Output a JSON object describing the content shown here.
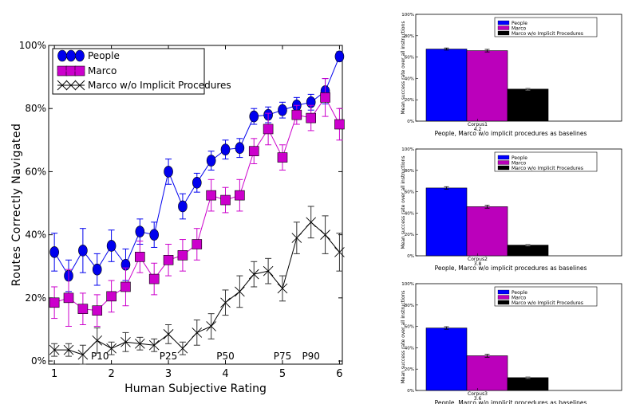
{
  "chart_data": [
    {
      "type": "line",
      "xlabel": "Human Subjective Rating",
      "ylabel": "Routes Correctly Navigated",
      "xlim": [
        0.9,
        6.05
      ],
      "ylim": [
        -0.01,
        1.0
      ],
      "xticks": [
        "1",
        "2",
        "3",
        "4",
        "5",
        "6"
      ],
      "yticks": [
        "0%",
        "20%",
        "40%",
        "60%",
        "80%",
        "100%"
      ],
      "legend_position": "top-left",
      "annotations": [
        {
          "label": "P10",
          "x": 1.8
        },
        {
          "label": "P25",
          "x": 3.0
        },
        {
          "label": "P50",
          "x": 4.0
        },
        {
          "label": "P75",
          "x": 5.0
        },
        {
          "label": "P90",
          "x": 5.5
        }
      ],
      "x": [
        1.0,
        1.25,
        1.5,
        1.75,
        2.0,
        2.25,
        2.5,
        2.75,
        3.0,
        3.25,
        3.5,
        3.75,
        4.0,
        4.25,
        4.5,
        4.75,
        5.0,
        5.25,
        5.5,
        5.75,
        6.0
      ],
      "series": [
        {
          "name": "People",
          "color": "#0000ee",
          "values": [
            0.345,
            0.27,
            0.35,
            0.29,
            0.365,
            0.305,
            0.41,
            0.4,
            0.6,
            0.49,
            0.565,
            0.635,
            0.67,
            0.675,
            0.775,
            0.78,
            0.795,
            0.81,
            0.82,
            0.855,
            0.965
          ],
          "errors": [
            0.06,
            0.05,
            0.07,
            0.05,
            0.05,
            0.05,
            0.04,
            0.04,
            0.04,
            0.04,
            0.03,
            0.03,
            0.03,
            0.03,
            0.025,
            0.025,
            0.025,
            0.025,
            0.025,
            0.04,
            0.015
          ]
        },
        {
          "name": "Marco",
          "color": "#cc00cc",
          "values": [
            0.185,
            0.2,
            0.165,
            0.16,
            0.205,
            0.235,
            0.33,
            0.26,
            0.32,
            0.335,
            0.37,
            0.525,
            0.51,
            0.525,
            0.665,
            0.735,
            0.645,
            0.78,
            0.77,
            0.835,
            0.75
          ],
          "errors": [
            0.05,
            0.09,
            0.05,
            0.05,
            0.05,
            0.06,
            0.05,
            0.05,
            0.05,
            0.05,
            0.05,
            0.05,
            0.04,
            0.05,
            0.04,
            0.05,
            0.04,
            0.03,
            0.04,
            0.06,
            0.05
          ]
        },
        {
          "name": "Marco w/o Implicit Procedures",
          "color": "#000000",
          "values": [
            0.035,
            0.035,
            0.02,
            0.065,
            0.04,
            0.06,
            0.055,
            0.05,
            0.085,
            0.04,
            0.09,
            0.11,
            0.185,
            0.22,
            0.275,
            0.285,
            0.23,
            0.39,
            0.44,
            0.4,
            0.345
          ],
          "errors": [
            0.02,
            0.02,
            0.03,
            0.04,
            0.02,
            0.03,
            0.02,
            0.02,
            0.03,
            0.02,
            0.04,
            0.04,
            0.04,
            0.05,
            0.04,
            0.04,
            0.04,
            0.05,
            0.05,
            0.06,
            0.06
          ]
        }
      ]
    },
    {
      "type": "bar",
      "ylabel": "Mean success rate over all instructions",
      "xlabel": "People, Marco w/o implicit procedures as baselines",
      "category": "Corpus1",
      "category_sub": "4.2",
      "ylim": [
        0,
        1.0
      ],
      "yticks": [
        "0%",
        "20%",
        "40%",
        "60%",
        "80%",
        "100%"
      ],
      "legend_position": "top-right",
      "series": [
        {
          "name": "People",
          "color": "#0000ff",
          "value": 0.675,
          "error": 0.01
        },
        {
          "name": "Marco",
          "color": "#bb00bb",
          "value": 0.66,
          "error": 0.012
        },
        {
          "name": "Marco w/o Implicit Procedures",
          "color": "#000000",
          "value": 0.3,
          "error": 0.01
        }
      ]
    },
    {
      "type": "bar",
      "ylabel": "Mean success rate over all instructions",
      "xlabel": "People, Marco w/o implicit procedures as baselines",
      "category": "Corpus2",
      "category_sub": "3.8",
      "ylim": [
        0,
        1.0
      ],
      "yticks": [
        "0%",
        "20%",
        "40%",
        "60%",
        "80%",
        "100%"
      ],
      "legend_position": "top-right",
      "series": [
        {
          "name": "People",
          "color": "#0000ff",
          "value": 0.635,
          "error": 0.012
        },
        {
          "name": "Marco",
          "color": "#bb00bb",
          "value": 0.46,
          "error": 0.014
        },
        {
          "name": "Marco w/o Implicit Procedures",
          "color": "#000000",
          "value": 0.1,
          "error": 0.008
        }
      ]
    },
    {
      "type": "bar",
      "ylabel": "Mean success rate over all instructions",
      "xlabel": "People, Marco w/o implicit procedures as baselines",
      "category": "Corpus3",
      "category_sub": "3.6",
      "ylim": [
        0,
        1.0
      ],
      "yticks": [
        "0%",
        "20%",
        "40%",
        "60%",
        "80%",
        "100%"
      ],
      "legend_position": "top-right",
      "series": [
        {
          "name": "People",
          "color": "#0000ff",
          "value": 0.585,
          "error": 0.012
        },
        {
          "name": "Marco",
          "color": "#bb00bb",
          "value": 0.325,
          "error": 0.014
        },
        {
          "name": "Marco w/o Implicit Procedures",
          "color": "#000000",
          "value": 0.12,
          "error": 0.008
        }
      ]
    }
  ]
}
